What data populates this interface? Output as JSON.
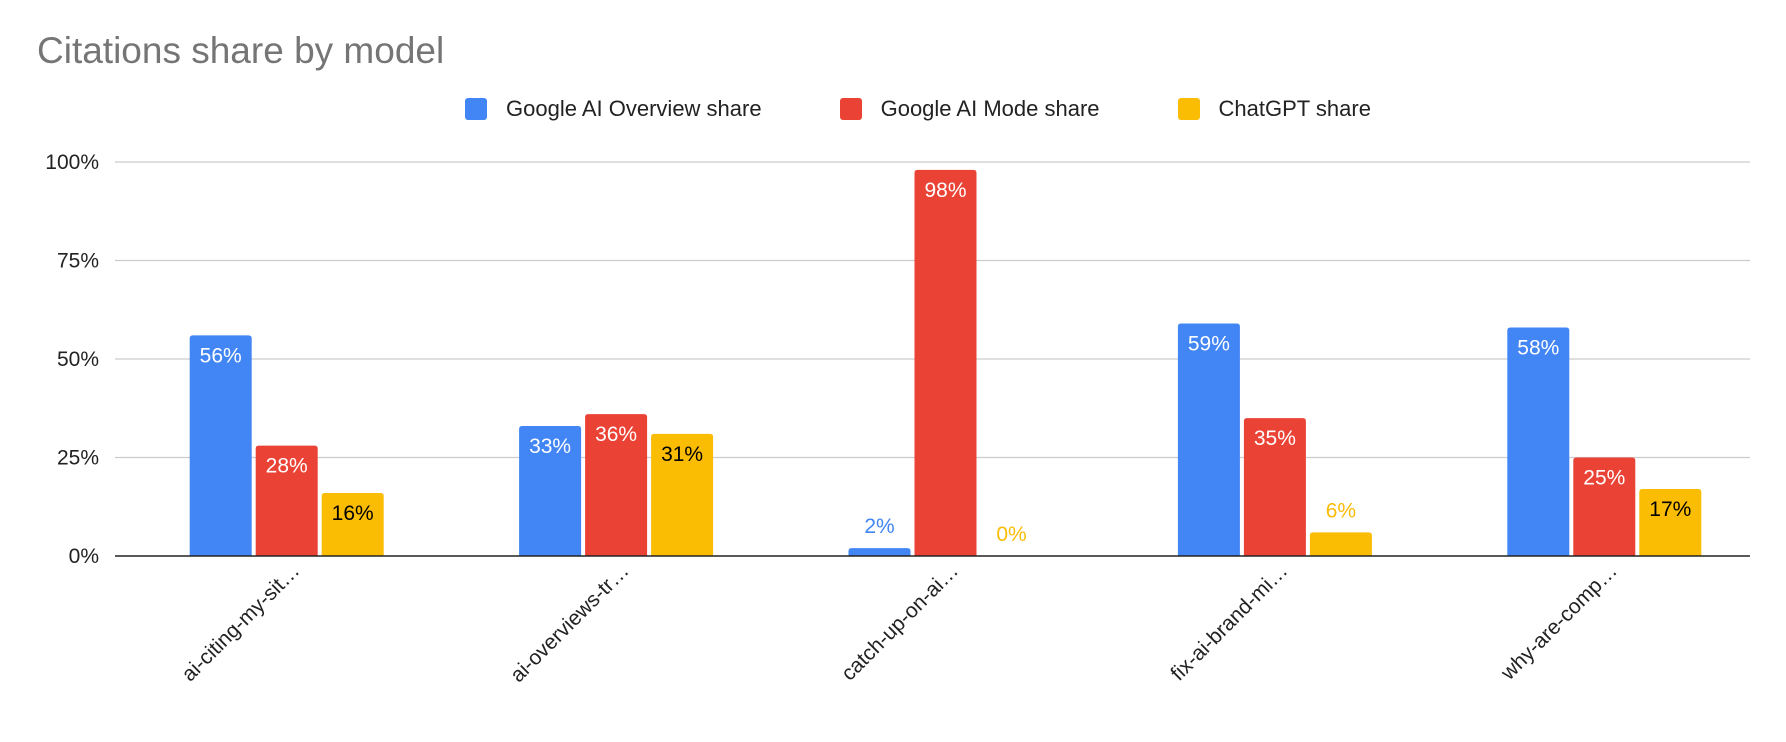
{
  "chart_data": {
    "type": "bar",
    "title": "Citations share by model",
    "categories": [
      "ai-citing-my-sit…",
      "ai-overviews-tr…",
      "catch-up-on-ai…",
      "fix-ai-brand-mi…",
      "why-are-comp…"
    ],
    "series": [
      {
        "name": "Google AI Overview share",
        "color": "#4285F4",
        "values": [
          56,
          33,
          2,
          59,
          58
        ],
        "labels": [
          "56%",
          "33%",
          "2%",
          "59%",
          "58%"
        ]
      },
      {
        "name": "Google AI Mode share",
        "color": "#EA4335",
        "values": [
          28,
          36,
          98,
          35,
          25
        ],
        "labels": [
          "28%",
          "36%",
          "98%",
          "35%",
          "25%"
        ]
      },
      {
        "name": "ChatGPT share",
        "color": "#FBBC04",
        "values": [
          16,
          31,
          0,
          6,
          17
        ],
        "labels": [
          "16%",
          "31%",
          "0%",
          "6%",
          "17%"
        ]
      }
    ],
    "ylim": [
      0,
      100
    ],
    "yticks": [
      0,
      25,
      50,
      75,
      100
    ],
    "ytick_labels": [
      "0%",
      "25%",
      "50%",
      "75%",
      "100%"
    ],
    "legend_position": "top",
    "grid": true,
    "xlabel": "",
    "ylabel": ""
  }
}
